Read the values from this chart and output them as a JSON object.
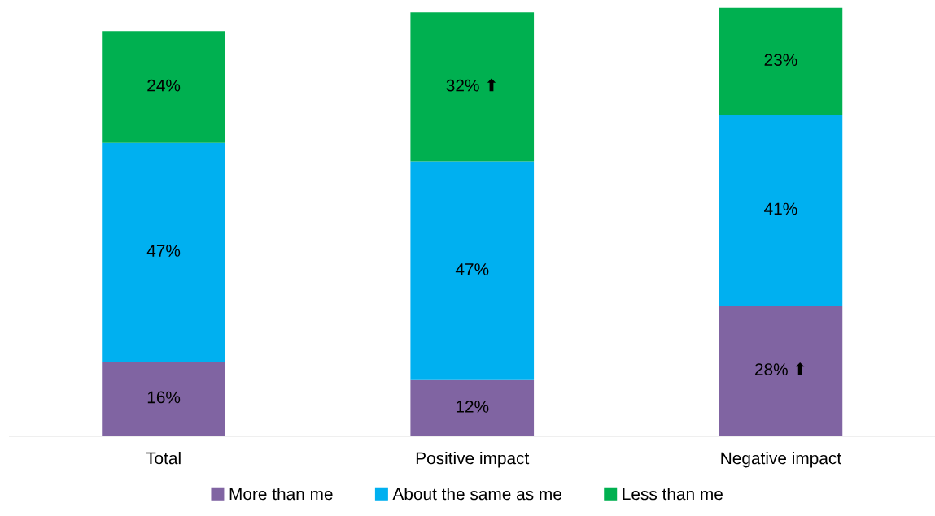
{
  "chart_data": {
    "type": "bar",
    "stacked": true,
    "categories": [
      "Total",
      "Positive impact",
      "Negative impact"
    ],
    "series": [
      {
        "name": "More than me",
        "color": "#8064a2",
        "values": [
          16,
          12,
          28
        ],
        "value_labels": [
          "16%",
          "12%",
          "28% ⬆"
        ]
      },
      {
        "name": "About the same as me",
        "color": "#00b0f0",
        "values": [
          47,
          47,
          41
        ],
        "value_labels": [
          "47%",
          "47%",
          "41%"
        ]
      },
      {
        "name": "Less than me",
        "color": "#00b050",
        "values": [
          24,
          32,
          23
        ],
        "value_labels": [
          "24%",
          "32% ⬆",
          "23%"
        ]
      }
    ],
    "tick_labels": "x",
    "legend": "bottom",
    "grid": false
  }
}
